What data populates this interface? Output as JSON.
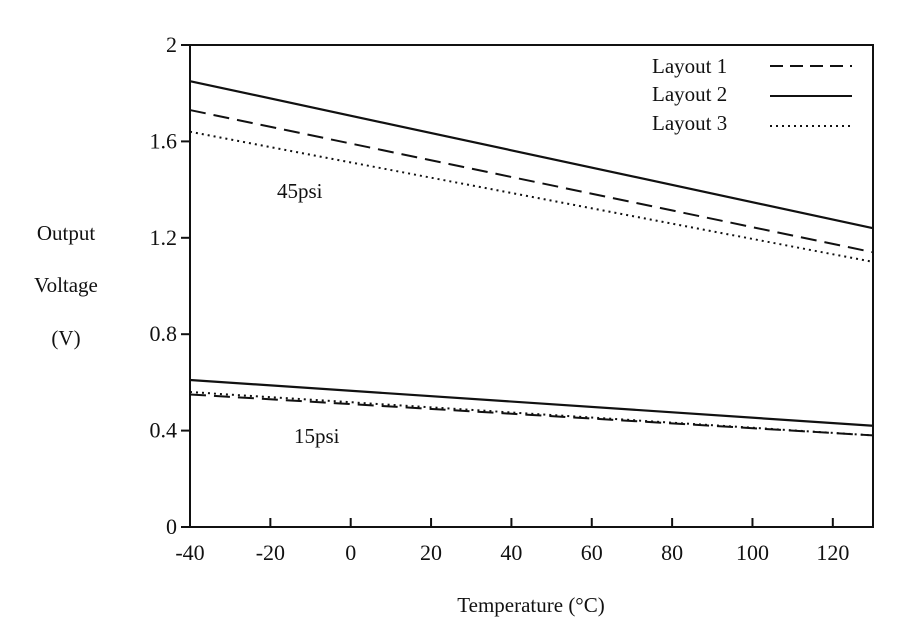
{
  "chart_data": {
    "type": "line",
    "title": "",
    "xlabel": "Temperature (°C)",
    "ylabel_lines": [
      "Output",
      "Voltage",
      "(V)"
    ],
    "xlim": [
      -40,
      130
    ],
    "ylim": [
      0,
      2
    ],
    "xticks": [
      -40,
      -20,
      0,
      20,
      40,
      60,
      80,
      100,
      120
    ],
    "yticks": [
      0,
      0.4,
      0.8,
      1.2,
      1.6,
      2
    ],
    "ytick_labels": [
      "0",
      "0.4",
      "0.8",
      "1.2",
      "1.6",
      "2"
    ],
    "grid": false,
    "legend_placement": "top-right",
    "legend": [
      {
        "name": "Layout 1",
        "style": "dashed"
      },
      {
        "name": "Layout 2",
        "style": "solid"
      },
      {
        "name": "Layout 3",
        "style": "dotted"
      }
    ],
    "annotations": [
      "45psi",
      "15psi"
    ],
    "series": [
      {
        "legend": "Layout 1",
        "group": "45psi",
        "style": "dashed",
        "x": [
          -40,
          130
        ],
        "y": [
          1.73,
          1.14
        ]
      },
      {
        "legend": "Layout 2",
        "group": "45psi",
        "style": "solid",
        "x": [
          -40,
          130
        ],
        "y": [
          1.85,
          1.24
        ]
      },
      {
        "legend": "Layout 3",
        "group": "45psi",
        "style": "dotted",
        "x": [
          -40,
          130
        ],
        "y": [
          1.64,
          1.1
        ]
      },
      {
        "legend": "Layout 1",
        "group": "15psi",
        "style": "dashed",
        "x": [
          -40,
          130
        ],
        "y": [
          0.55,
          0.38
        ]
      },
      {
        "legend": "Layout 2",
        "group": "15psi",
        "style": "solid",
        "x": [
          -40,
          130
        ],
        "y": [
          0.61,
          0.42
        ]
      },
      {
        "legend": "Layout 3",
        "group": "15psi",
        "style": "dotted",
        "x": [
          -40,
          130
        ],
        "y": [
          0.56,
          0.38
        ]
      }
    ],
    "colors": {
      "ink": "#111111",
      "background": "#ffffff"
    }
  }
}
